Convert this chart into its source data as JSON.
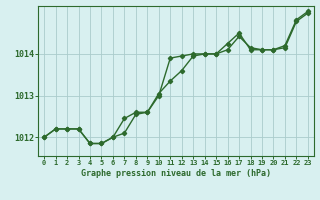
{
  "xlabel": "Graphe pression niveau de la mer (hPa)",
  "hours": [
    0,
    1,
    2,
    3,
    4,
    5,
    6,
    7,
    8,
    9,
    10,
    11,
    12,
    13,
    14,
    15,
    16,
    17,
    18,
    19,
    20,
    21,
    22,
    23
  ],
  "line1": [
    1012.0,
    1012.2,
    1012.2,
    1012.2,
    1011.85,
    1011.85,
    1012.0,
    1012.1,
    1012.55,
    1012.6,
    1013.0,
    1013.9,
    1013.95,
    1014.0,
    1014.0,
    1014.0,
    1014.25,
    1014.5,
    1014.1,
    1014.1,
    1014.1,
    1014.2,
    1014.82,
    1015.02
  ],
  "line2": [
    1012.0,
    1012.2,
    1012.2,
    1012.2,
    1011.85,
    1011.85,
    1012.0,
    1012.45,
    1012.6,
    1012.6,
    1013.05,
    1013.35,
    1013.6,
    1013.95,
    1014.0,
    1014.0,
    1014.1,
    1014.42,
    1014.15,
    1014.1,
    1014.1,
    1014.15,
    1014.78,
    1014.98
  ],
  "line_color": "#2d6a2d",
  "bg_color": "#d8f0f0",
  "grid_color": "#aacccc",
  "ylim": [
    1011.55,
    1015.15
  ],
  "yticks": [
    1012,
    1013,
    1014
  ],
  "marker_size": 2.2,
  "linewidth": 1.0,
  "xlabel_fontsize": 6.0,
  "xtick_fontsize": 5.0,
  "ytick_fontsize": 6.0
}
